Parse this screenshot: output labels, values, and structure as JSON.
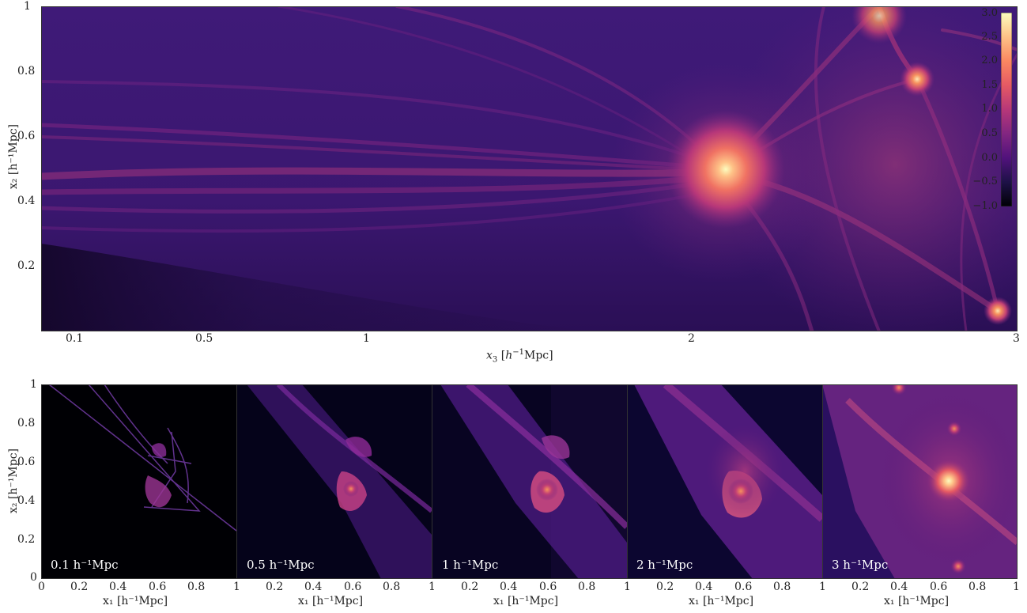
{
  "top_panel": {
    "xlabel_var": "x",
    "xlabel_sub": "3",
    "xlabel_unit_pre": "[",
    "xlabel_unit_h": "h",
    "xlabel_unit_sup": "−1",
    "xlabel_unit_post": "Mpc]",
    "ylabel": "x₂ [h⁻¹Mpc]",
    "x_ticks": [
      "0.1",
      "0.5",
      "1",
      "2",
      "3"
    ],
    "y_ticks": [
      "1",
      "0.8",
      "0.6",
      "0.4",
      "0.2"
    ]
  },
  "colorbar": {
    "ticks": [
      "3.0",
      "2.5",
      "2.0",
      "1.5",
      "1.0",
      "0.5",
      "0.0",
      "−0.5",
      "−1.0"
    ],
    "cmap_stops": [
      "#fcfdbf",
      "#fec287",
      "#fb8761",
      "#e55964",
      "#b73779",
      "#822681",
      "#51127c",
      "#1d1147",
      "#000004"
    ]
  },
  "bottom_panels": {
    "ylabel": "x₂ [h⁻¹Mpc]",
    "y_ticks": [
      "1",
      "0.8",
      "0.6",
      "0.4",
      "0.2",
      "0"
    ],
    "x_ticks_first": [
      "0",
      "0.2",
      "0.4",
      "0.6",
      "0.8",
      "1"
    ],
    "x_ticks_rest": [
      "0.2",
      "0.4",
      "0.6",
      "0.8",
      "1"
    ],
    "xlabel": "x₁ [h⁻¹Mpc]",
    "panels": [
      {
        "label": "0.1 h⁻¹Mpc"
      },
      {
        "label": "0.5 h⁻¹Mpc"
      },
      {
        "label": "1 h⁻¹Mpc"
      },
      {
        "label": "2 h⁻¹Mpc"
      },
      {
        "label": "3 h⁻¹Mpc"
      }
    ]
  }
}
